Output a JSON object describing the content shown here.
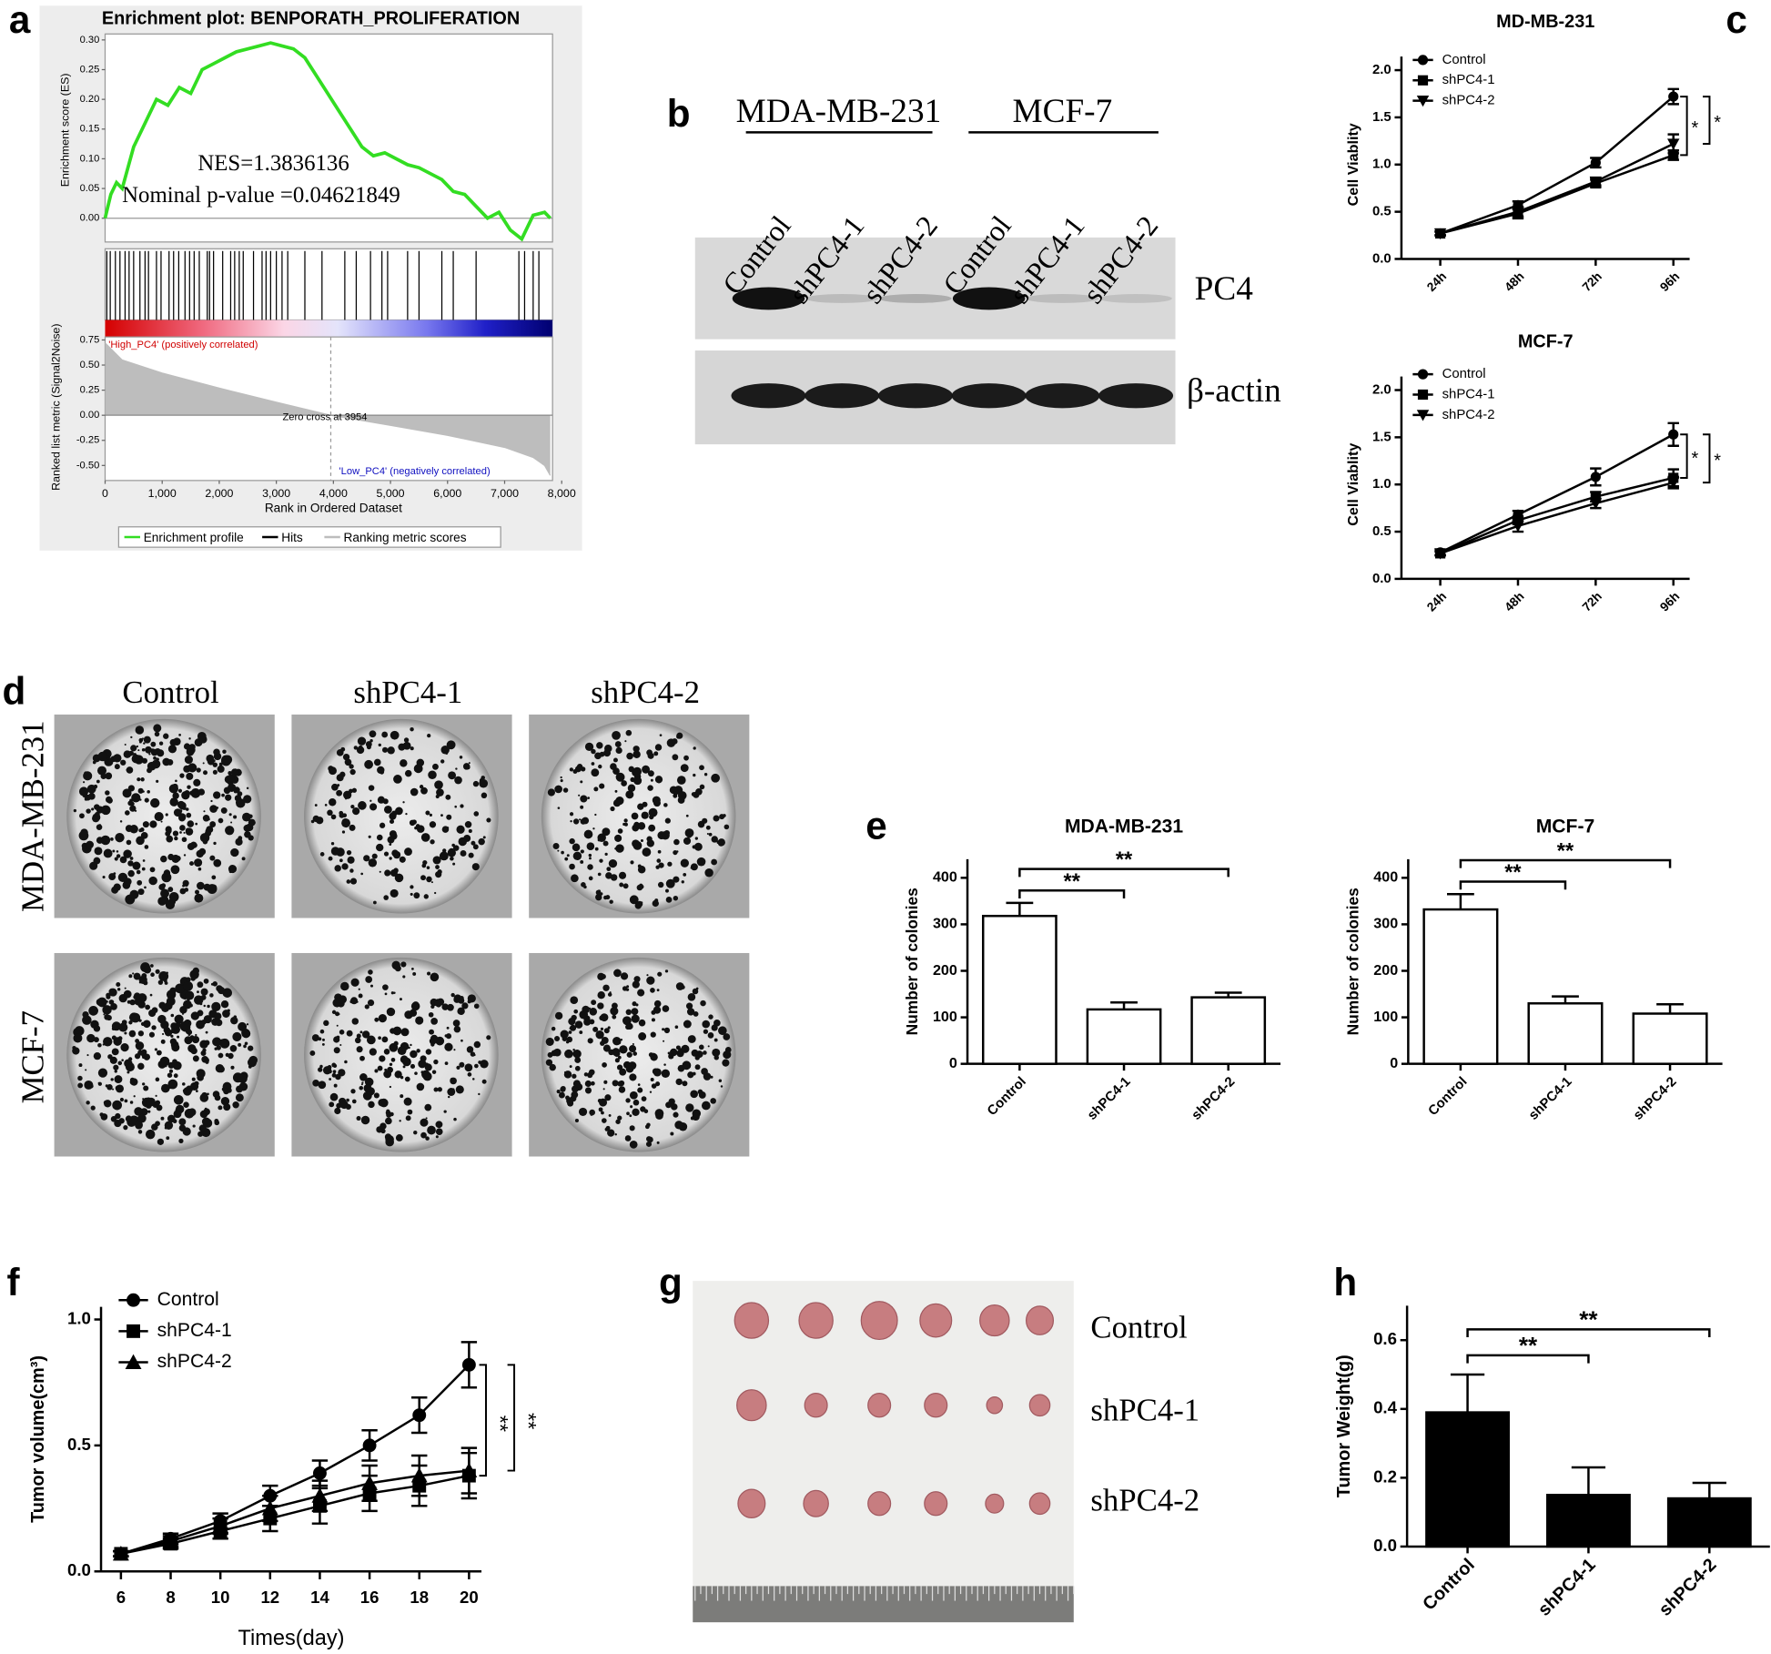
{
  "panel_labels": [
    "a",
    "b",
    "c",
    "d",
    "e",
    "f",
    "g",
    "h"
  ],
  "blot": {
    "cell_lines": [
      "MDA-MB-231",
      "MCF-7"
    ],
    "lanes": [
      "Control",
      "shPC4-1",
      "shPC4-2",
      "Control",
      "shPC4-1",
      "shPC4-2"
    ],
    "proteins": [
      "PC4",
      "β-actin"
    ]
  },
  "colony": {
    "columns": [
      "Control",
      "shPC4-1",
      "shPC4-2"
    ],
    "rows": [
      "MDA-MB-231",
      "MCF-7"
    ]
  },
  "tumors": {
    "rows": [
      "Control",
      "shPC4-1",
      "shPC4-2"
    ]
  },
  "chart_data": [
    {
      "type": "gsea",
      "title": "Enrichment plot: BENPORATH_PROLIFERATION",
      "ylabel": "Enrichment score (ES)",
      "xlabel": "Rank in Ordered Dataset",
      "color": "#33dd22",
      "x": [
        0,
        100,
        200,
        300,
        500,
        700,
        900,
        1100,
        1300,
        1500,
        1700,
        1900,
        2100,
        2300,
        2500,
        2700,
        2900,
        3100,
        3300,
        3500,
        3700,
        3900,
        4100,
        4300,
        4500,
        4700,
        4900,
        5100,
        5300,
        5500,
        5700,
        5900,
        6100,
        6300,
        6500,
        6700,
        6900,
        7100,
        7300,
        7500,
        7700,
        7800
      ],
      "values": [
        0,
        0.04,
        0.06,
        0.05,
        0.12,
        0.16,
        0.2,
        0.19,
        0.22,
        0.21,
        0.25,
        0.26,
        0.27,
        0.28,
        0.285,
        0.29,
        0.295,
        0.29,
        0.285,
        0.27,
        0.24,
        0.21,
        0.18,
        0.15,
        0.12,
        0.105,
        0.11,
        0.1,
        0.09,
        0.085,
        0.075,
        0.065,
        0.045,
        0.04,
        0.02,
        0,
        0.01,
        -0.02,
        -0.035,
        0.005,
        0.01,
        0
      ],
      "xlim": [
        0,
        8000
      ],
      "xticks": [
        0,
        {
          "value": 1000,
          "label": "1,000"
        },
        {
          "value": 2000,
          "label": "2,000"
        },
        {
          "value": 3000,
          "label": "3,000"
        },
        {
          "value": 4000,
          "label": "4,000"
        },
        {
          "value": 5000,
          "label": "5,000"
        },
        {
          "value": 6000,
          "label": "6,000"
        },
        {
          "value": 7000,
          "label": "7,000"
        },
        {
          "value": 8000,
          "label": "8,000"
        }
      ],
      "ylim": [
        -0.04,
        0.31
      ],
      "yticks": [
        {
          "value": 0,
          "label": "0.00"
        },
        0.05,
        {
          "value": 0.1,
          "label": "0.10"
        },
        0.15,
        {
          "value": 0.2,
          "label": "0.20"
        },
        0.25,
        {
          "value": 0.3,
          "label": "0.30"
        }
      ],
      "annotations": [
        "NES=1.3836136",
        "Nominal p-value =0.04621849"
      ],
      "hits": [
        30,
        90,
        180,
        260,
        350,
        420,
        500,
        610,
        700,
        760,
        900,
        980,
        1120,
        1200,
        1290,
        1400,
        1480,
        1560,
        1650,
        1790,
        1830,
        1900,
        2060,
        2200,
        2270,
        2350,
        2420,
        2600,
        2750,
        2820,
        2900,
        3000,
        3100,
        3200,
        3500,
        3800,
        4200,
        4400,
        4650,
        4850,
        4950,
        5300,
        5500,
        5900,
        6100,
        6500,
        7250,
        7350,
        7500,
        7600
      ],
      "metric": {
        "ylabel": "Ranked list metric (Signal2Noise)",
        "color": "#bdbdbd",
        "x": [
          0,
          300,
          1000,
          2000,
          3000,
          3954,
          5000,
          6000,
          7000,
          7500,
          7700,
          7800
        ],
        "values": [
          0.72,
          0.55,
          0.42,
          0.27,
          0.13,
          0,
          -0.1,
          -0.2,
          -0.32,
          -0.42,
          -0.5,
          -0.6
        ],
        "ylim": [
          -0.65,
          0.78
        ],
        "yticks": [
          0.75,
          {
            "value": 0.5,
            "label": "0.50"
          },
          0.25,
          {
            "value": 0,
            "label": "0.00"
          },
          -0.25,
          {
            "value": -0.5,
            "label": "-0.50"
          }
        ],
        "zero_cross": 3954,
        "zero_cross_label": "Zero cross at 3954",
        "high_label": "'High_PC4' (positively correlated)",
        "low_label": "'Low_PC4' (negatively correlated)"
      },
      "legend": [
        "Enrichment profile",
        "Hits",
        "Ranking metric scores"
      ]
    },
    {
      "type": "line",
      "title": "MD-MB-231",
      "ylabel": "Cell Viablity",
      "categories": [
        "24h",
        "48h",
        "72h",
        "96h"
      ],
      "ylim": [
        0,
        2.0
      ],
      "yticks": [
        {
          "value": 0,
          "label": "0.0"
        },
        0.5,
        {
          "value": 1,
          "label": "1.0"
        },
        1.5,
        {
          "value": 2,
          "label": "2.0"
        }
      ],
      "series": [
        {
          "name": "Control",
          "marker": "circle",
          "color": "#000000",
          "values": [
            0.27,
            0.57,
            1.02,
            1.72
          ],
          "errors": [
            0.02,
            0.04,
            0.05,
            0.08
          ]
        },
        {
          "name": "shPC4-1",
          "marker": "square",
          "color": "#000000",
          "values": [
            0.27,
            0.48,
            0.8,
            1.1
          ],
          "errors": [
            0.02,
            0.05,
            0.04,
            0.05
          ]
        },
        {
          "name": "shPC4-2",
          "marker": "triangle-down",
          "color": "#000000",
          "values": [
            0.27,
            0.5,
            0.82,
            1.22
          ],
          "errors": [
            0.02,
            0.05,
            0.04,
            0.1
          ]
        }
      ],
      "annotations": [
        "*",
        "*"
      ],
      "legend": "upper left"
    },
    {
      "type": "line",
      "title": "MCF-7",
      "ylabel": "Cell Viablity",
      "categories": [
        "24h",
        "48h",
        "72h",
        "96h"
      ],
      "ylim": [
        0,
        2.0
      ],
      "yticks": [
        {
          "value": 0,
          "label": "0.0"
        },
        0.5,
        {
          "value": 1,
          "label": "1.0"
        },
        1.5,
        {
          "value": 2,
          "label": "2.0"
        }
      ],
      "series": [
        {
          "name": "Control",
          "marker": "circle",
          "color": "#000000",
          "values": [
            0.28,
            0.68,
            1.08,
            1.53
          ],
          "errors": [
            0.03,
            0.04,
            0.09,
            0.12
          ]
        },
        {
          "name": "shPC4-1",
          "marker": "square",
          "color": "#000000",
          "values": [
            0.27,
            0.62,
            0.87,
            1.07
          ],
          "errors": [
            0.02,
            0.04,
            0.05,
            0.09
          ]
        },
        {
          "name": "shPC4-2",
          "marker": "triangle-down",
          "color": "#000000",
          "values": [
            0.27,
            0.56,
            0.8,
            1.02
          ],
          "errors": [
            0.02,
            0.06,
            0.05,
            0.06
          ]
        }
      ],
      "annotations": [
        "*",
        "*"
      ],
      "legend": "upper left"
    },
    {
      "type": "bar",
      "title": "MDA-MB-231",
      "ylabel": "Number of colonies",
      "categories": [
        "Control",
        "shPC4-1",
        "shPC4-2"
      ],
      "values": [
        318,
        117,
        143
      ],
      "errors": [
        28,
        15,
        10
      ],
      "color": "#ffffff",
      "edgecolor": "#000000",
      "ylim": [
        0,
        440
      ],
      "yticks": [
        0,
        100,
        200,
        300,
        400
      ],
      "annotations": [
        "**",
        "**"
      ]
    },
    {
      "type": "bar",
      "title": "MCF-7",
      "ylabel": "Number of colonies",
      "categories": [
        "Control",
        "shPC4-1",
        "shPC4-2"
      ],
      "values": [
        332,
        130,
        108
      ],
      "errors": [
        33,
        15,
        20
      ],
      "color": "#ffffff",
      "edgecolor": "#000000",
      "ylim": [
        0,
        440
      ],
      "yticks": [
        0,
        100,
        200,
        300,
        400
      ],
      "annotations": [
        "**",
        "**"
      ]
    },
    {
      "type": "line",
      "xlabel": "Times(day)",
      "ylabel": "Tumor volume(cm³)",
      "x": [
        6,
        8,
        10,
        12,
        14,
        16,
        18,
        20
      ],
      "xlim": [
        5.2,
        20.5
      ],
      "xticks": [
        6,
        8,
        10,
        12,
        14,
        16,
        18,
        20
      ],
      "ylim": [
        0,
        1.05
      ],
      "yticks": [
        {
          "value": 0,
          "label": "0.0"
        },
        0.5,
        {
          "value": 1,
          "label": "1.0"
        }
      ],
      "series": [
        {
          "name": "Control",
          "marker": "circle",
          "color": "#000000",
          "values": [
            0.07,
            0.13,
            0.2,
            0.3,
            0.39,
            0.5,
            0.62,
            0.82
          ],
          "errors": [
            0.01,
            0.02,
            0.03,
            0.04,
            0.05,
            0.06,
            0.07,
            0.09
          ]
        },
        {
          "name": "shPC4-1",
          "marker": "square",
          "color": "#000000",
          "values": [
            0.07,
            0.11,
            0.16,
            0.21,
            0.26,
            0.31,
            0.34,
            0.38
          ],
          "errors": [
            0.01,
            0.02,
            0.03,
            0.05,
            0.07,
            0.07,
            0.08,
            0.09
          ]
        },
        {
          "name": "shPC4-2",
          "marker": "triangle-up",
          "color": "#000000",
          "values": [
            0.07,
            0.12,
            0.18,
            0.25,
            0.3,
            0.35,
            0.38,
            0.4
          ],
          "errors": [
            0.01,
            0.02,
            0.03,
            0.05,
            0.06,
            0.07,
            0.08,
            0.09
          ]
        }
      ],
      "annotations": [
        "**",
        "**"
      ],
      "legend": "upper left"
    },
    {
      "type": "bar",
      "ylabel": "Tumor Weight(g)",
      "categories": [
        "Control",
        "shPC4-1",
        "shPC4-2"
      ],
      "values": [
        0.39,
        0.15,
        0.14
      ],
      "errors": [
        0.11,
        0.08,
        0.045
      ],
      "color": "#000000",
      "edgecolor": "#000000",
      "ylim": [
        0,
        0.7
      ],
      "yticks": [
        {
          "value": 0,
          "label": "0.0"
        },
        0.2,
        0.4,
        0.6
      ],
      "annotations": [
        "**",
        "**"
      ]
    }
  ]
}
